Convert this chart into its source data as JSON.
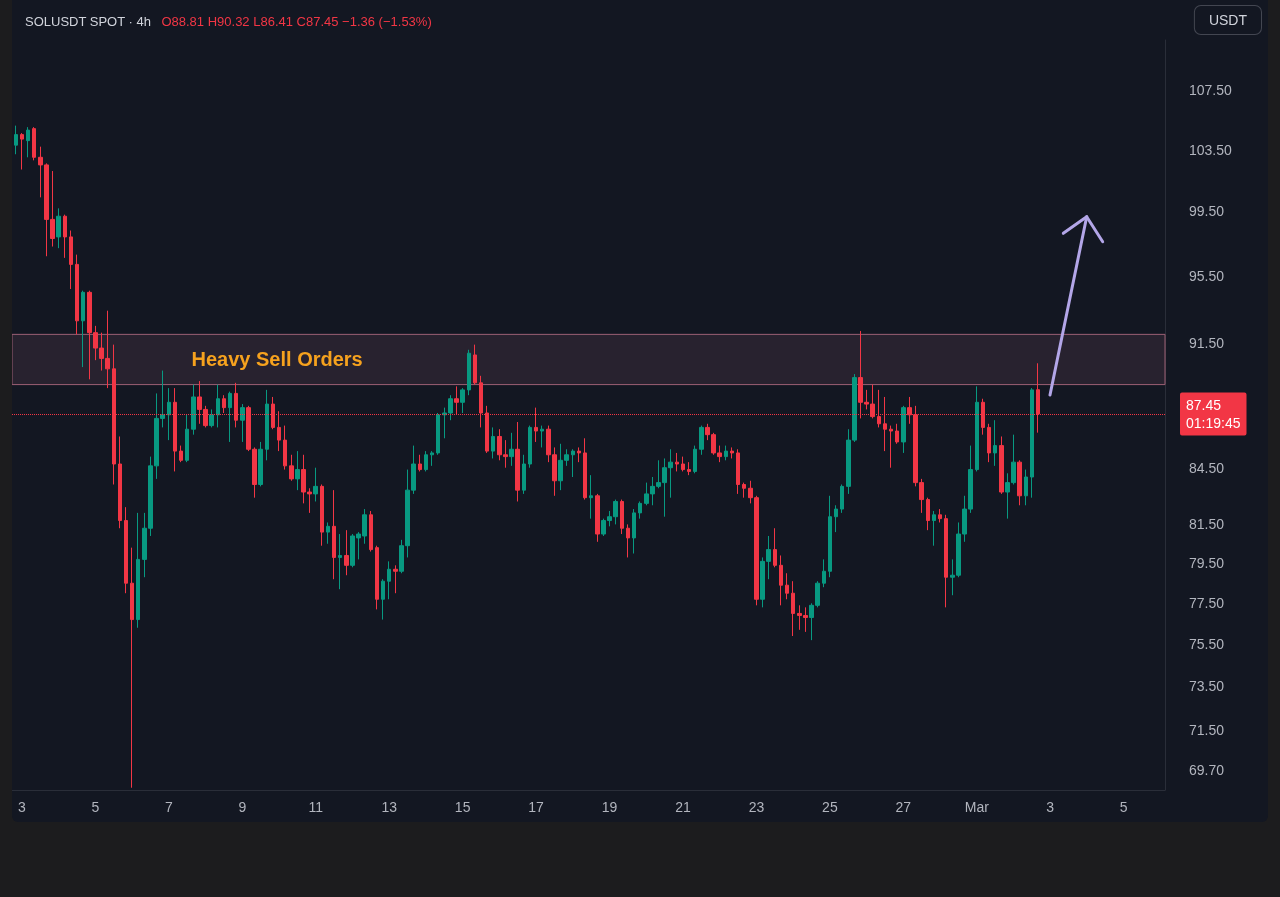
{
  "chart_data": {
    "type": "candlestick",
    "title": "SOLUSDT SPOT · 4h",
    "subtitle": "O88.81 H90.32 L86.41 C87.45 −1.36 (−1.53%)",
    "ylabel": "USDT",
    "x": [
      "--02-02T20:00",
      "--02-03T00:00",
      "--02-03T04:00",
      "--02-03T08:00",
      "--02-03T12:00",
      "--02-03T16:00",
      "--02-03T20:00",
      "--02-04T00:00",
      "--02-04T04:00",
      "--02-04T08:00",
      "--02-04T12:00",
      "--02-04T16:00",
      "--02-04T20:00",
      "--02-05T00:00",
      "--02-05T04:00",
      "--02-05T08:00",
      "--02-05T12:00",
      "--02-05T16:00",
      "--02-05T20:00",
      "--02-06T00:00",
      "--02-06T04:00",
      "--02-06T08:00",
      "--02-06T12:00",
      "--02-06T16:00",
      "--02-06T20:00",
      "--02-07T00:00",
      "--02-07T04:00",
      "--02-07T08:00",
      "--02-07T12:00",
      "--02-07T16:00",
      "--02-07T20:00",
      "--02-08T00:00",
      "--02-08T04:00",
      "--02-08T08:00",
      "--02-08T12:00",
      "--02-08T16:00",
      "--02-08T20:00",
      "--02-09T00:00",
      "--02-09T04:00",
      "--02-09T08:00",
      "--02-09T12:00",
      "--02-09T16:00",
      "--02-09T20:00",
      "--02-10T00:00",
      "--02-10T04:00",
      "--02-10T08:00",
      "--02-10T12:00",
      "--02-10T16:00",
      "--02-10T20:00",
      "--02-11T00:00",
      "--02-11T04:00",
      "--02-11T08:00",
      "--02-11T12:00",
      "--02-11T16:00",
      "--02-11T20:00",
      "--02-12T00:00",
      "--02-12T04:00",
      "--02-12T08:00",
      "--02-12T12:00",
      "--02-12T16:00",
      "--02-12T20:00",
      "--02-13T00:00",
      "--02-13T04:00",
      "--02-13T08:00",
      "--02-13T12:00",
      "--02-13T16:00",
      "--02-13T20:00",
      "--02-14T00:00",
      "--02-14T04:00",
      "--02-14T08:00",
      "--02-14T12:00",
      "--02-14T16:00",
      "--02-14T20:00",
      "--02-15T00:00",
      "--02-15T04:00",
      "--02-15T08:00",
      "--02-15T12:00",
      "--02-15T16:00",
      "--02-15T20:00",
      "--02-16T00:00",
      "--02-16T04:00",
      "--02-16T08:00",
      "--02-16T12:00",
      "--02-16T16:00",
      "--02-16T20:00",
      "--02-17T00:00",
      "--02-17T04:00",
      "--02-17T08:00",
      "--02-17T12:00",
      "--02-17T16:00",
      "--02-17T20:00",
      "--02-18T00:00",
      "--02-18T04:00",
      "--02-18T08:00",
      "--02-18T12:00",
      "--02-18T16:00",
      "--02-18T20:00",
      "--02-19T00:00",
      "--02-19T04:00",
      "--02-19T08:00",
      "--02-19T12:00",
      "--02-19T16:00",
      "--02-19T20:00",
      "--02-20T00:00",
      "--02-20T04:00",
      "--02-20T08:00",
      "--02-20T12:00",
      "--02-20T16:00",
      "--02-20T20:00",
      "--02-21T00:00",
      "--02-21T04:00",
      "--02-21T08:00",
      "--02-21T12:00",
      "--02-21T16:00",
      "--02-21T20:00",
      "--02-22T00:00",
      "--02-22T04:00",
      "--02-22T08:00",
      "--02-22T12:00",
      "--02-22T16:00",
      "--02-22T20:00",
      "--02-23T00:00",
      "--02-23T04:00",
      "--02-23T08:00",
      "--02-23T12:00",
      "--02-23T16:00",
      "--02-23T20:00",
      "--02-24T00:00",
      "--02-24T04:00",
      "--02-24T08:00",
      "--02-24T12:00",
      "--02-24T16:00",
      "--02-24T20:00",
      "--02-25T00:00",
      "--02-25T04:00",
      "--02-25T08:00",
      "--02-25T12:00",
      "--02-25T16:00",
      "--02-25T20:00",
      "--02-26T00:00",
      "--02-26T04:00",
      "--02-26T08:00",
      "--02-26T12:00",
      "--02-26T16:00",
      "--02-26T20:00",
      "--02-27T00:00",
      "--02-27T04:00",
      "--02-27T08:00",
      "--02-27T12:00",
      "--02-27T16:00",
      "--02-27T20:00",
      "--02-28T00:00",
      "--02-28T04:00",
      "--02-28T08:00",
      "--02-28T12:00",
      "--02-28T16:00",
      "--02-28T20:00",
      "--03-01T00:00",
      "--03-01T04:00",
      "--03-01T08:00",
      "--03-01T12:00",
      "--03-01T16:00",
      "--03-01T20:00",
      "--03-02T00:00",
      "--03-02T04:00",
      "--03-02T08:00",
      "--03-02T12:00",
      "--03-02T16:00"
    ],
    "ohlc": [
      [
        103.8,
        105.1,
        103.2,
        104.5
      ],
      [
        104.5,
        104.6,
        102.2,
        104.2
      ],
      [
        104.1,
        105.0,
        103.0,
        104.8
      ],
      [
        104.9,
        105.0,
        102.8,
        103.0
      ],
      [
        103.0,
        103.7,
        100.4,
        102.5
      ],
      [
        102.5,
        102.6,
        96.7,
        99.0
      ],
      [
        99.0,
        102.1,
        97.3,
        97.8
      ],
      [
        97.9,
        99.7,
        97.2,
        99.2
      ],
      [
        99.2,
        99.3,
        96.6,
        97.9
      ],
      [
        97.9,
        98.3,
        94.7,
        96.2
      ],
      [
        96.2,
        96.8,
        92.0,
        92.8
      ],
      [
        92.8,
        94.6,
        90.1,
        94.5
      ],
      [
        94.5,
        94.6,
        89.4,
        92.1
      ],
      [
        92.1,
        92.5,
        90.5,
        91.2
      ],
      [
        91.2,
        92.1,
        89.9,
        90.6
      ],
      [
        90.6,
        93.4,
        88.9,
        90.0
      ],
      [
        90.0,
        91.4,
        83.6,
        84.7
      ],
      [
        84.7,
        86.2,
        81.3,
        81.7
      ],
      [
        81.7,
        82.4,
        78.0,
        78.5
      ],
      [
        78.5,
        80.3,
        68.9,
        76.7
      ],
      [
        76.7,
        82.1,
        76.3,
        79.7
      ],
      [
        79.7,
        82.1,
        78.8,
        81.3
      ],
      [
        81.3,
        85.1,
        80.9,
        84.6
      ],
      [
        84.6,
        88.6,
        83.9,
        87.2
      ],
      [
        87.2,
        89.9,
        86.7,
        87.4
      ],
      [
        87.4,
        88.9,
        86.0,
        88.1
      ],
      [
        88.1,
        88.9,
        84.3,
        85.4
      ],
      [
        85.4,
        85.7,
        84.8,
        84.9
      ],
      [
        84.9,
        87.4,
        84.8,
        86.6
      ],
      [
        86.6,
        89.1,
        86.3,
        88.4
      ],
      [
        88.4,
        89.3,
        86.9,
        87.7
      ],
      [
        87.7,
        87.9,
        86.7,
        86.8
      ],
      [
        86.8,
        87.7,
        86.7,
        87.4
      ],
      [
        87.4,
        89.1,
        86.7,
        88.3
      ],
      [
        88.3,
        88.5,
        87.5,
        87.8
      ],
      [
        87.8,
        88.7,
        85.9,
        88.6
      ],
      [
        88.6,
        89.2,
        86.7,
        87.1
      ],
      [
        87.1,
        88.0,
        85.9,
        87.8
      ],
      [
        87.8,
        87.9,
        85.4,
        85.5
      ],
      [
        85.5,
        85.6,
        82.9,
        83.6
      ],
      [
        83.6,
        85.9,
        83.5,
        85.5
      ],
      [
        85.5,
        88.8,
        84.9,
        88.0
      ],
      [
        88.0,
        88.4,
        86.6,
        86.7
      ],
      [
        86.7,
        87.6,
        85.4,
        86.0
      ],
      [
        86.0,
        86.8,
        84.4,
        84.6
      ],
      [
        84.6,
        85.2,
        83.8,
        83.9
      ],
      [
        83.9,
        85.4,
        83.3,
        84.4
      ],
      [
        84.4,
        85.2,
        82.6,
        83.2
      ],
      [
        83.2,
        83.4,
        82.1,
        83.1
      ],
      [
        83.1,
        84.5,
        82.7,
        83.5
      ],
      [
        83.5,
        83.6,
        80.4,
        81.1
      ],
      [
        81.1,
        81.6,
        80.5,
        81.4
      ],
      [
        81.4,
        83.3,
        78.7,
        79.8
      ],
      [
        79.8,
        81.0,
        78.2,
        79.9
      ],
      [
        79.9,
        81.2,
        78.9,
        79.4
      ],
      [
        79.4,
        81.0,
        79.3,
        80.9
      ],
      [
        80.8,
        81.1,
        79.7,
        81.0
      ],
      [
        80.9,
        82.3,
        80.5,
        82.0
      ],
      [
        82.0,
        82.2,
        80.1,
        80.2
      ],
      [
        80.3,
        80.4,
        77.2,
        77.7
      ],
      [
        77.7,
        78.7,
        76.7,
        78.6
      ],
      [
        78.6,
        79.6,
        77.7,
        79.2
      ],
      [
        79.2,
        79.4,
        78.0,
        79.1
      ],
      [
        79.1,
        80.7,
        79.0,
        80.4
      ],
      [
        80.4,
        84.4,
        79.8,
        83.3
      ],
      [
        83.3,
        85.7,
        83.1,
        84.7
      ],
      [
        84.7,
        85.2,
        84.3,
        84.4
      ],
      [
        84.4,
        85.4,
        84.3,
        85.2
      ],
      [
        85.2,
        85.4,
        84.6,
        85.3
      ],
      [
        85.3,
        87.5,
        85.2,
        87.4
      ],
      [
        87.4,
        87.8,
        86.1,
        87.5
      ],
      [
        87.5,
        88.5,
        87.1,
        88.3
      ],
      [
        88.3,
        89.0,
        87.4,
        88.1
      ],
      [
        88.1,
        88.9,
        87.5,
        88.8
      ],
      [
        88.8,
        91.1,
        88.5,
        90.9
      ],
      [
        90.8,
        91.4,
        89.1,
        89.2
      ],
      [
        89.2,
        89.6,
        86.7,
        87.5
      ],
      [
        87.5,
        87.9,
        85.3,
        85.4
      ],
      [
        85.4,
        86.7,
        85.0,
        86.2
      ],
      [
        86.2,
        86.6,
        84.9,
        85.2
      ],
      [
        85.2,
        86.0,
        84.5,
        85.1
      ],
      [
        85.1,
        86.4,
        84.6,
        85.5
      ],
      [
        85.5,
        87.0,
        82.7,
        83.3
      ],
      [
        83.3,
        85.2,
        83.1,
        84.7
      ],
      [
        84.7,
        86.8,
        84.5,
        86.7
      ],
      [
        86.7,
        87.8,
        85.9,
        86.5
      ],
      [
        86.5,
        86.8,
        85.6,
        86.6
      ],
      [
        86.6,
        86.8,
        84.8,
        85.2
      ],
      [
        85.2,
        85.6,
        83.0,
        83.8
      ],
      [
        83.8,
        85.8,
        83.3,
        84.9
      ],
      [
        84.9,
        85.5,
        84.6,
        85.2
      ],
      [
        85.2,
        85.5,
        84.0,
        85.4
      ],
      [
        85.4,
        85.6,
        84.8,
        85.3
      ],
      [
        85.3,
        86.1,
        82.8,
        82.9
      ],
      [
        82.9,
        84.1,
        81.8,
        83.0
      ],
      [
        83.0,
        83.1,
        80.6,
        81.0
      ],
      [
        81.0,
        81.8,
        80.9,
        81.7
      ],
      [
        81.7,
        82.2,
        81.4,
        81.9
      ],
      [
        81.9,
        82.8,
        81.5,
        82.7
      ],
      [
        82.7,
        82.8,
        81.0,
        81.3
      ],
      [
        81.3,
        81.5,
        79.8,
        80.8
      ],
      [
        80.8,
        82.3,
        80.0,
        82.1
      ],
      [
        82.1,
        82.7,
        81.8,
        82.6
      ],
      [
        82.6,
        83.7,
        82.5,
        83.1
      ],
      [
        83.1,
        84.0,
        82.5,
        83.5
      ],
      [
        83.5,
        84.9,
        83.4,
        83.7
      ],
      [
        83.7,
        85.0,
        81.9,
        84.5
      ],
      [
        84.5,
        85.5,
        82.9,
        84.8
      ],
      [
        84.8,
        85.3,
        84.3,
        84.7
      ],
      [
        84.7,
        85.1,
        84.3,
        84.4
      ],
      [
        84.4,
        84.8,
        84.1,
        84.3
      ],
      [
        84.3,
        85.7,
        84.2,
        85.5
      ],
      [
        85.5,
        86.8,
        85.2,
        86.7
      ],
      [
        86.7,
        86.9,
        86.0,
        86.3
      ],
      [
        86.3,
        86.4,
        85.2,
        85.3
      ],
      [
        85.3,
        85.7,
        84.8,
        85.1
      ],
      [
        85.1,
        85.7,
        84.9,
        85.4
      ],
      [
        85.4,
        85.6,
        85.0,
        85.3
      ],
      [
        85.3,
        85.5,
        83.1,
        83.6
      ],
      [
        83.6,
        83.7,
        82.9,
        83.4
      ],
      [
        83.4,
        83.8,
        82.6,
        82.9
      ],
      [
        82.9,
        83.0,
        77.4,
        77.7
      ],
      [
        77.7,
        79.8,
        77.3,
        79.6
      ],
      [
        79.6,
        80.9,
        78.7,
        80.2
      ],
      [
        80.2,
        81.3,
        79.3,
        79.4
      ],
      [
        79.4,
        79.9,
        77.4,
        78.4
      ],
      [
        78.4,
        79.0,
        77.7,
        78.0
      ],
      [
        78.0,
        78.6,
        75.9,
        77.0
      ],
      [
        77.0,
        77.4,
        76.2,
        76.9
      ],
      [
        76.9,
        77.3,
        76.1,
        76.8
      ],
      [
        76.8,
        77.5,
        75.7,
        77.4
      ],
      [
        77.4,
        78.6,
        77.3,
        78.5
      ],
      [
        78.5,
        79.7,
        78.3,
        79.1
      ],
      [
        79.1,
        83.0,
        78.8,
        81.9
      ],
      [
        81.9,
        82.5,
        81.1,
        82.3
      ],
      [
        82.3,
        83.6,
        82.1,
        83.5
      ],
      [
        83.5,
        86.6,
        83.1,
        86.0
      ],
      [
        86.0,
        89.7,
        85.9,
        89.5
      ],
      [
        89.5,
        92.2,
        87.2,
        88.1
      ],
      [
        88.1,
        88.8,
        87.7,
        88.0
      ],
      [
        88.0,
        89.1,
        87.2,
        87.3
      ],
      [
        87.3,
        88.8,
        86.7,
        86.9
      ],
      [
        86.9,
        88.4,
        85.4,
        86.6
      ],
      [
        86.6,
        86.8,
        84.5,
        86.5
      ],
      [
        86.5,
        86.9,
        85.8,
        85.9
      ],
      [
        85.9,
        87.9,
        85.3,
        87.8
      ],
      [
        87.8,
        88.4,
        86.9,
        87.4
      ],
      [
        87.4,
        87.9,
        83.5,
        83.7
      ],
      [
        83.7,
        83.9,
        82.1,
        82.8
      ],
      [
        82.8,
        82.9,
        81.2,
        81.7
      ],
      [
        81.7,
        82.2,
        80.4,
        82.0
      ],
      [
        82.0,
        82.3,
        81.6,
        81.8
      ],
      [
        81.8,
        82.0,
        77.3,
        78.8
      ],
      [
        78.8,
        79.7,
        77.9,
        78.9
      ],
      [
        78.9,
        81.6,
        78.8,
        81.0
      ],
      [
        81.0,
        83.0,
        80.6,
        82.3
      ],
      [
        82.3,
        85.7,
        82.1,
        84.4
      ],
      [
        84.4,
        89.0,
        84.3,
        88.1
      ],
      [
        88.1,
        88.3,
        86.3,
        86.7
      ],
      [
        86.7,
        86.9,
        84.8,
        85.3
      ],
      [
        85.3,
        87.1,
        84.6,
        85.7
      ],
      [
        85.7,
        86.2,
        83.1,
        83.2
      ],
      [
        83.2,
        84.2,
        81.8,
        83.7
      ],
      [
        83.7,
        86.3,
        83.6,
        84.8
      ],
      [
        84.8,
        84.9,
        82.5,
        83.0
      ],
      [
        83.0,
        84.4,
        82.5,
        84.0
      ],
      [
        84.0,
        88.9,
        82.9,
        88.8
      ],
      [
        88.81,
        90.32,
        86.41,
        87.45
      ]
    ],
    "colors": [
      "#089981",
      "#f23645",
      "#089981",
      "#f23645",
      "#f23645",
      "#f23645",
      "#f23645",
      "#089981",
      "#f23645",
      "#f23645",
      "#f23645",
      "#089981",
      "#f23645",
      "#f23645",
      "#f23645",
      "#f23645",
      "#f23645",
      "#f23645",
      "#f23645",
      "#f23645",
      "#089981",
      "#089981",
      "#089981",
      "#089981",
      "#089981",
      "#089981",
      "#f23645",
      "#f23645",
      "#089981",
      "#089981",
      "#f23645",
      "#f23645",
      "#089981",
      "#089981",
      "#f23645",
      "#089981",
      "#f23645",
      "#089981",
      "#f23645",
      "#f23645",
      "#089981",
      "#089981",
      "#f23645",
      "#f23645",
      "#f23645",
      "#f23645",
      "#089981",
      "#f23645",
      "#f23645",
      "#089981",
      "#f23645",
      "#089981",
      "#f23645",
      "#089981",
      "#f23645",
      "#089981",
      "#089981",
      "#089981",
      "#f23645",
      "#f23645",
      "#089981",
      "#089981",
      "#f23645",
      "#089981",
      "#089981",
      "#089981",
      "#f23645",
      "#089981",
      "#089981",
      "#089981",
      "#089981",
      "#089981",
      "#f23645",
      "#089981",
      "#089981",
      "#f23645",
      "#f23645",
      "#f23645",
      "#089981",
      "#f23645",
      "#f23645",
      "#089981",
      "#f23645",
      "#089981",
      "#089981",
      "#f23645",
      "#089981",
      "#f23645",
      "#f23645",
      "#089981",
      "#089981",
      "#089981",
      "#f23645",
      "#f23645",
      "#089981",
      "#f23645",
      "#089981",
      "#089981",
      "#089981",
      "#f23645",
      "#f23645",
      "#089981",
      "#089981",
      "#089981",
      "#089981",
      "#089981",
      "#089981",
      "#089981",
      "#f23645",
      "#f23645",
      "#f23645",
      "#089981",
      "#089981",
      "#f23645",
      "#f23645",
      "#f23645",
      "#089981",
      "#f23645",
      "#f23645",
      "#f23645",
      "#f23645",
      "#f23645",
      "#089981",
      "#089981",
      "#f23645",
      "#f23645",
      "#f23645",
      "#f23645",
      "#f23645",
      "#f23645",
      "#089981",
      "#089981",
      "#089981",
      "#089981",
      "#089981",
      "#089981",
      "#089981",
      "#089981",
      "#f23645",
      "#f23645",
      "#f23645",
      "#f23645",
      "#f23645",
      "#f23645",
      "#f23645",
      "#089981",
      "#f23645",
      "#f23645",
      "#f23645",
      "#f23645",
      "#089981",
      "#f23645",
      "#f23645",
      "#089981",
      "#089981",
      "#089981",
      "#089981",
      "#089981",
      "#f23645",
      "#f23645",
      "#089981",
      "#f23645",
      "#089981",
      "#089981",
      "#f23645",
      "#089981",
      "#089981",
      "#f23645"
    ],
    "xlim": [
      "--02-02T17:30",
      "--03-06T03:00"
    ],
    "xticks": [
      {
        "value": "--02-03",
        "label": "3"
      },
      {
        "value": "--02-05",
        "label": "5"
      },
      {
        "value": "--02-07",
        "label": "7"
      },
      {
        "value": "--02-09",
        "label": "9"
      },
      {
        "value": "--02-11",
        "label": "11"
      },
      {
        "value": "--02-13",
        "label": "13"
      },
      {
        "value": "--02-15",
        "label": "15"
      },
      {
        "value": "--02-17",
        "label": "17"
      },
      {
        "value": "--02-19",
        "label": "19"
      },
      {
        "value": "--02-21",
        "label": "21"
      },
      {
        "value": "--02-23",
        "label": "23"
      },
      {
        "value": "--02-25",
        "label": "25"
      },
      {
        "value": "--02-27",
        "label": "27"
      },
      {
        "value": "--03-01",
        "label": "Mar"
      },
      {
        "value": "--03-03",
        "label": "3"
      },
      {
        "value": "--03-05",
        "label": "5"
      }
    ],
    "ylim": [
      68.8,
      111.0
    ],
    "yticks": [
      {
        "value": 69.7,
        "label": "69.70"
      },
      {
        "value": 71.5,
        "label": "71.50"
      },
      {
        "value": 73.5,
        "label": "73.50"
      },
      {
        "value": 75.5,
        "label": "75.50"
      },
      {
        "value": 77.5,
        "label": "77.50"
      },
      {
        "value": 79.5,
        "label": "79.50"
      },
      {
        "value": 81.5,
        "label": "81.50"
      },
      {
        "value": 84.5,
        "label": "84.50"
      },
      {
        "value": 91.5,
        "label": "91.50"
      },
      {
        "value": 95.5,
        "label": "95.50"
      },
      {
        "value": 99.5,
        "label": "99.50"
      },
      {
        "value": 103.5,
        "label": "103.50"
      },
      {
        "value": 107.5,
        "label": "107.50"
      }
    ],
    "log": true,
    "ref_lines": [
      {
        "axis": "y",
        "value": 87.45,
        "label": "87.45\n01:19:45",
        "color": "#f23645",
        "line_style": "dotted"
      }
    ],
    "bands": [
      {
        "axis": "y",
        "from": 89.1,
        "to": 92.0,
        "label": "Heavy Sell Orders",
        "color": "#9c5f74"
      }
    ]
  }
}
